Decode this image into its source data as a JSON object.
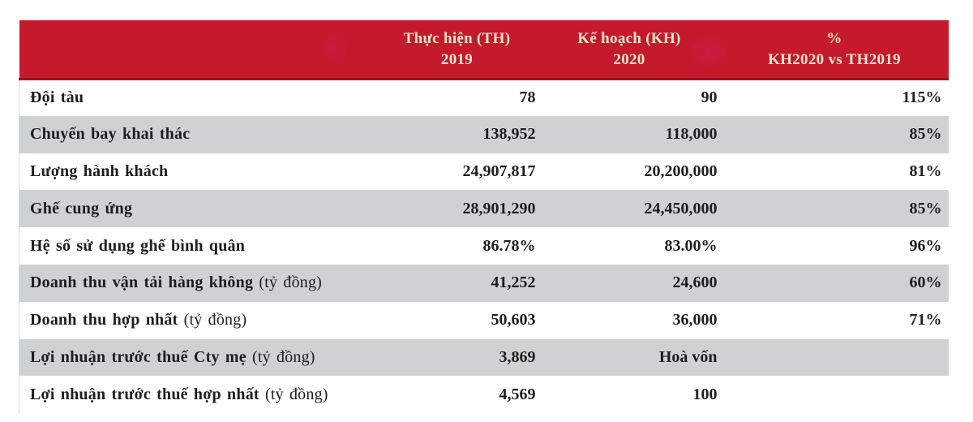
{
  "table": {
    "header": {
      "th2019": {
        "line1": "Thực hiện (TH)",
        "line2": "2019"
      },
      "kh2020": {
        "line1": "Kế hoạch (KH)",
        "line2": "2020"
      },
      "pct": {
        "line1": "%",
        "line2": "KH2020 vs TH2019"
      }
    },
    "rows": [
      {
        "label": "Đội tàu",
        "suffix": "",
        "th2019": "78",
        "kh2020": "90",
        "pct": "115%"
      },
      {
        "label": "Chuyến bay khai thác",
        "suffix": "",
        "th2019": "138,952",
        "kh2020": "118,000",
        "pct": "85%"
      },
      {
        "label": "Lượng hành khách",
        "suffix": "",
        "th2019": "24,907,817",
        "kh2020": "20,200,000",
        "pct": "81%"
      },
      {
        "label": "Ghế cung ứng",
        "suffix": "",
        "th2019": "28,901,290",
        "kh2020": "24,450,000",
        "pct": "85%"
      },
      {
        "label": "Hệ số sử dụng ghế bình quân",
        "suffix": "",
        "th2019": "86.78%",
        "kh2020": "83.00%",
        "pct": "96%"
      },
      {
        "label": "Doanh thu vận tải hàng không",
        "suffix": " (tỷ đồng)",
        "th2019": "41,252",
        "kh2020": "24,600",
        "pct": "60%"
      },
      {
        "label": "Doanh thu hợp nhất",
        "suffix": " (tỷ đồng)",
        "th2019": "50,603",
        "kh2020": "36,000",
        "pct": "71%"
      },
      {
        "label": "Lợi nhuận trước thuế Cty mẹ",
        "suffix": " (tỷ đồng)",
        "th2019": "3,869",
        "kh2020": "Hoà vốn",
        "pct": ""
      },
      {
        "label": "Lợi nhuận trước thuế hợp nhất",
        "suffix": " (tỷ đồng)",
        "th2019": "4,569",
        "kh2020": "100",
        "pct": ""
      }
    ],
    "colors": {
      "header_red": "#c5192c",
      "header_red_edge": "#9e1122",
      "header_text": "#f1e7cf",
      "stripe_gray": "#ced2d2",
      "body_text": "#1e1e1e"
    }
  }
}
